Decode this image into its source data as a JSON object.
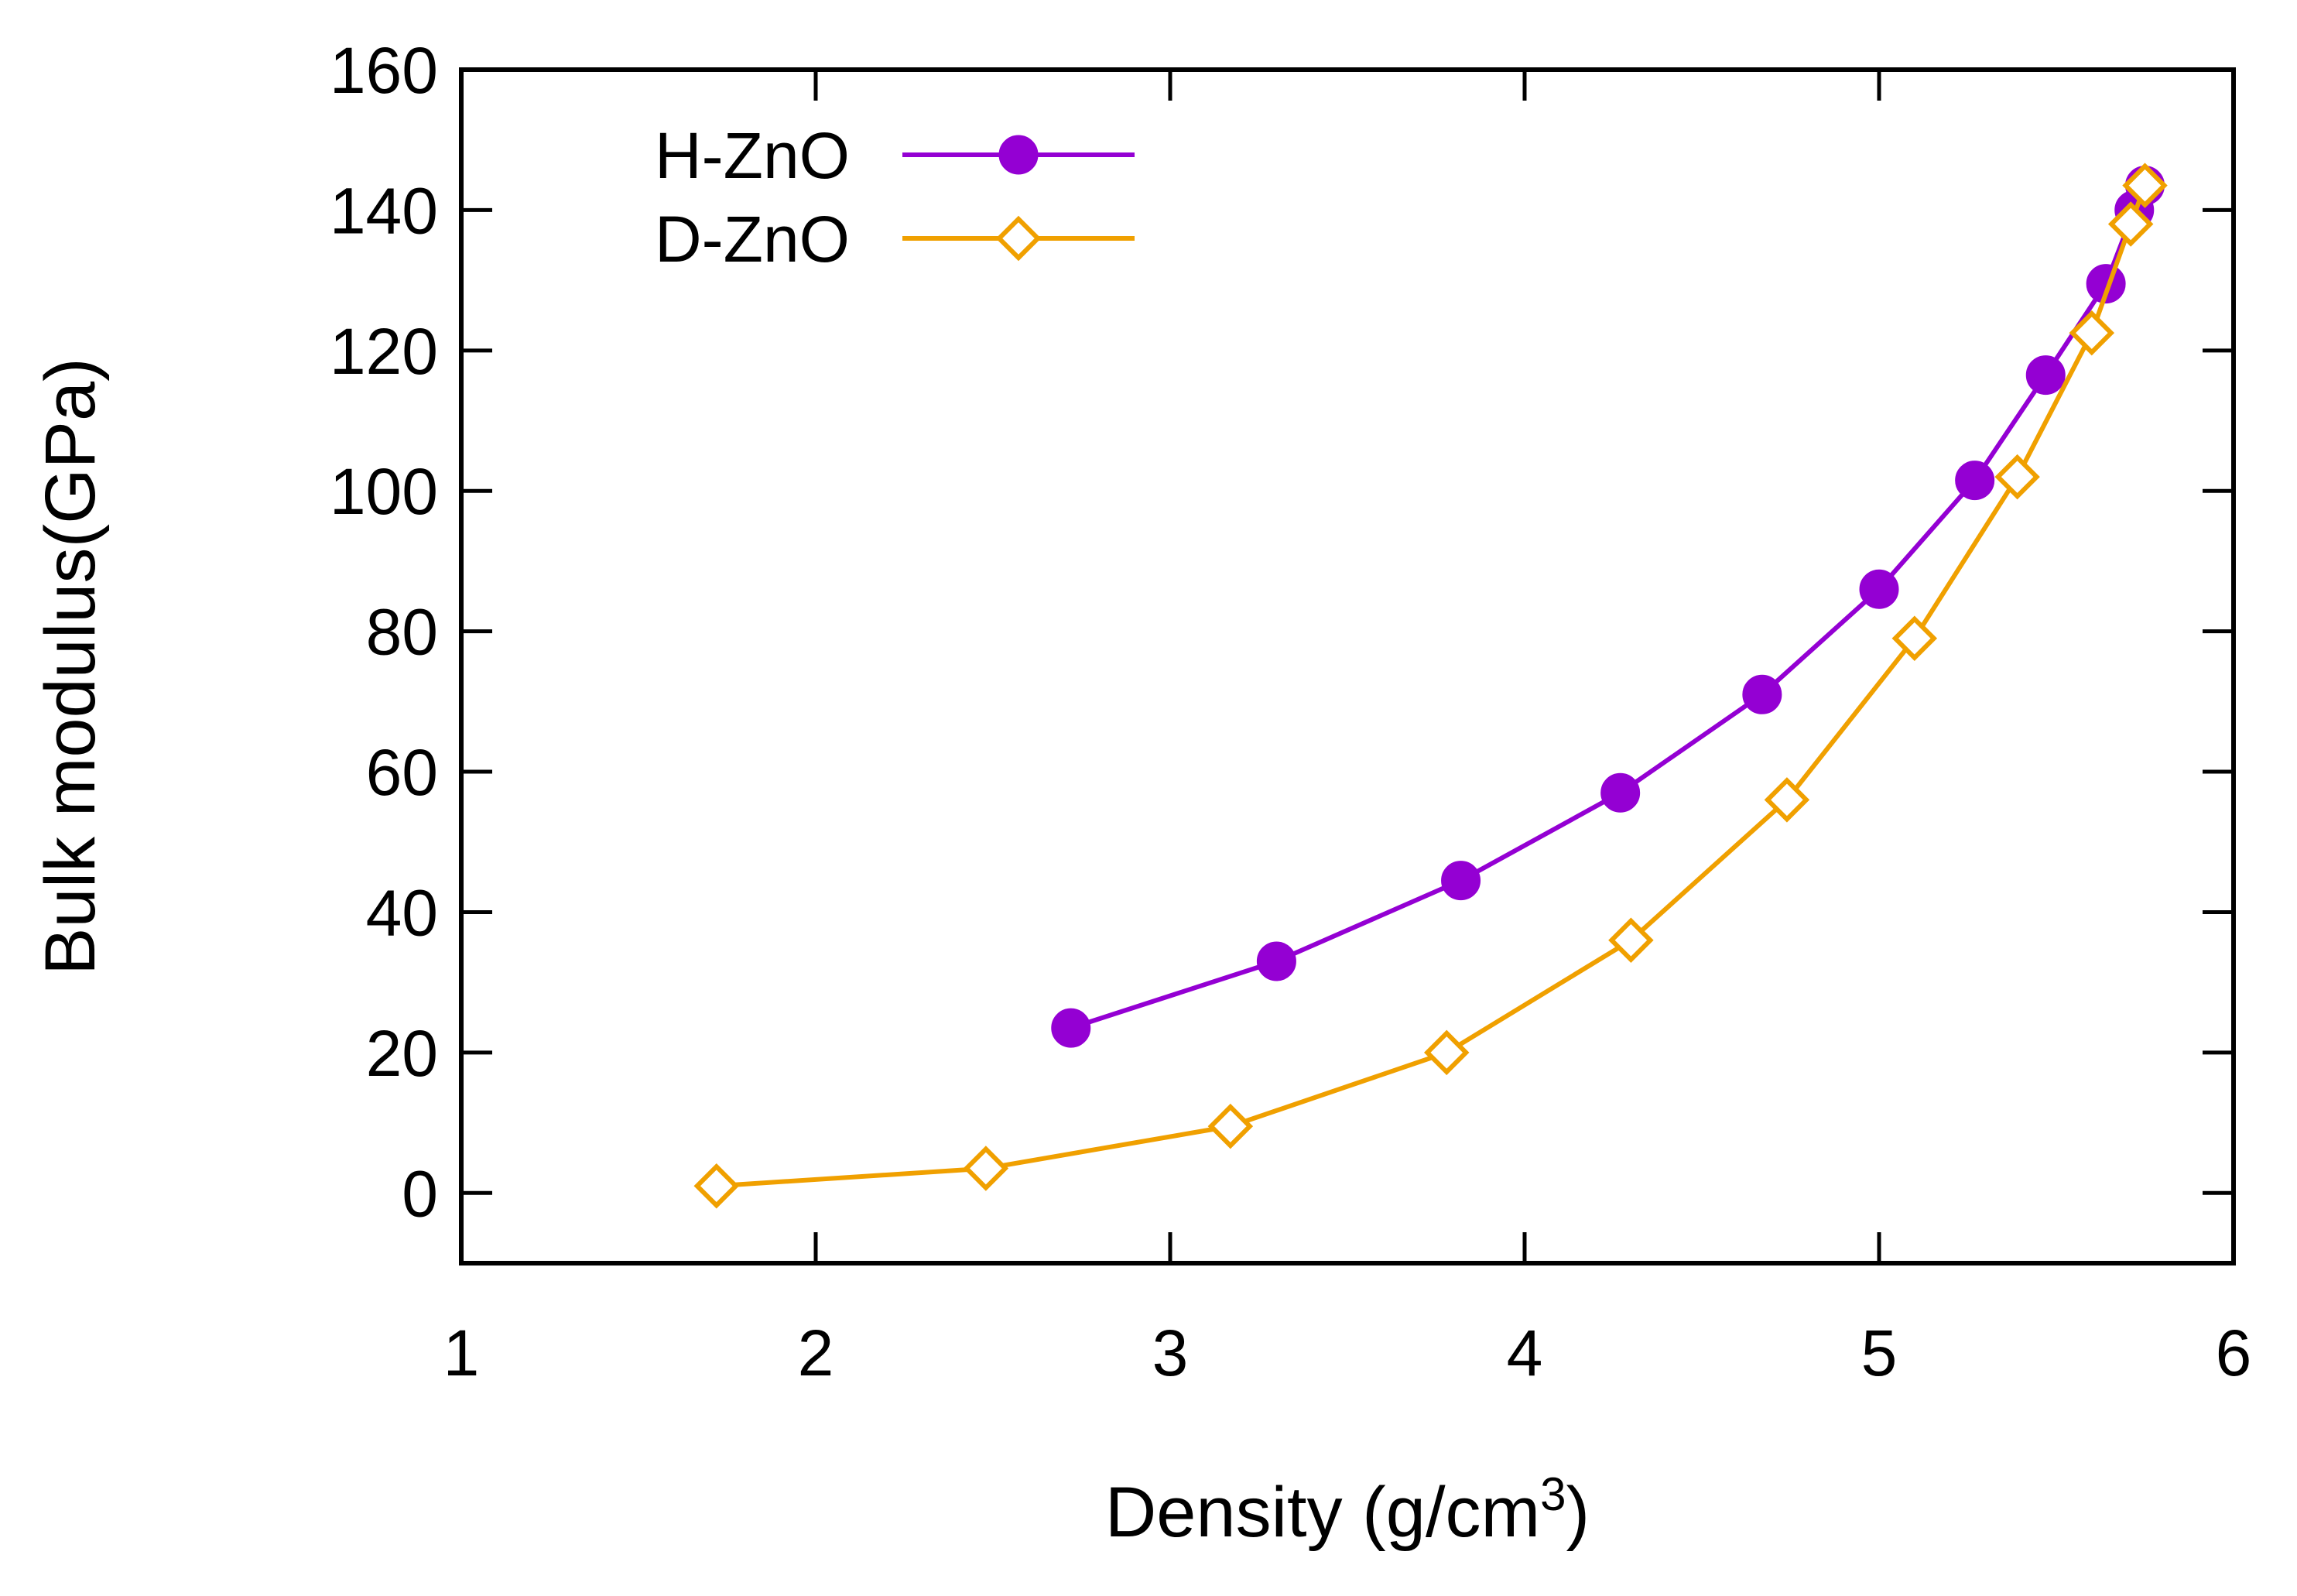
{
  "chart_data": {
    "type": "line",
    "title": "",
    "xlabel": "Density (g/cm",
    "xlabel_superscript": "3",
    "xlabel_suffix": ")",
    "ylabel": "Bulk modulus(GPa)",
    "xlim": [
      1,
      6
    ],
    "ylim": [
      -10,
      160
    ],
    "xticks": [
      1,
      2,
      3,
      4,
      5,
      6
    ],
    "yticks": [
      0,
      20,
      40,
      60,
      80,
      100,
      120,
      140,
      160
    ],
    "grid": false,
    "legend_position": "top-left",
    "series": [
      {
        "name": "H-ZnO",
        "color": "#9400d3",
        "marker": "filled-circle",
        "x": [
          2.72,
          3.3,
          3.82,
          4.27,
          4.67,
          5.0,
          5.27,
          5.47,
          5.64,
          5.72,
          5.75
        ],
        "y": [
          23.5,
          33.0,
          44.5,
          57.0,
          71.0,
          86.0,
          101.5,
          116.5,
          129.5,
          140.0,
          143.5
        ]
      },
      {
        "name": "D-ZnO",
        "color": "#f0a000",
        "marker": "open-diamond",
        "x": [
          1.72,
          2.48,
          3.17,
          3.78,
          4.3,
          4.74,
          5.1,
          5.39,
          5.6,
          5.71,
          5.75
        ],
        "y": [
          1.0,
          3.5,
          9.5,
          20.0,
          36.0,
          56.0,
          79.0,
          102.0,
          122.5,
          138.0,
          143.5
        ]
      }
    ]
  }
}
